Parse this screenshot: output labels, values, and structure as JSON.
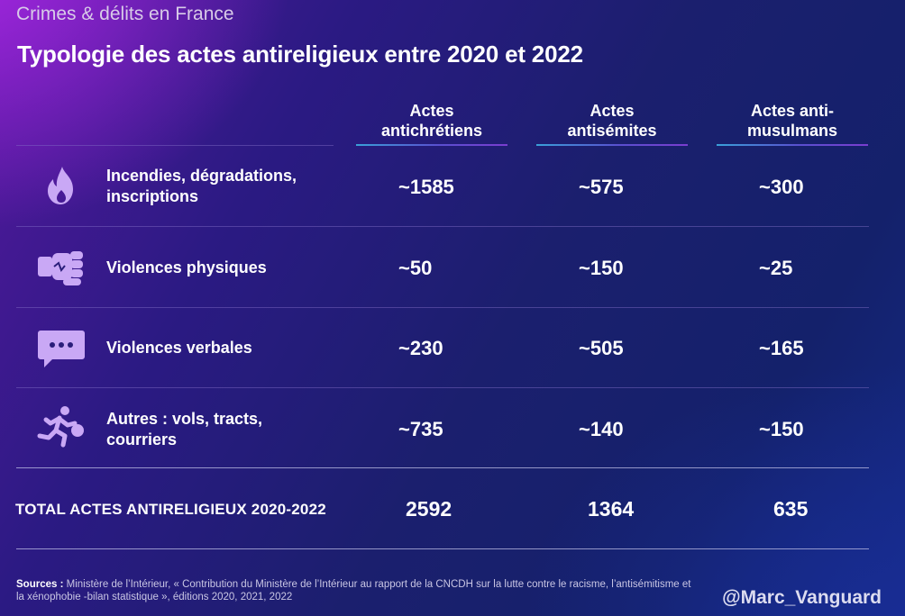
{
  "supertitle": "Crimes & délits en France",
  "chart_data": {
    "type": "table",
    "title": "Typologie des actes antireligieux entre 2020 et 2022",
    "columns": [
      "Actes antichrétiens",
      "Actes antisémites",
      "Actes anti-musulmans"
    ],
    "columns_lines": [
      [
        "Actes",
        "antichrétiens"
      ],
      [
        "Actes",
        "antisémites"
      ],
      [
        "Actes anti-",
        "musulmans"
      ]
    ],
    "rows": [
      {
        "label_lines": [
          "Incendies, dégradations,",
          "inscriptions"
        ],
        "icon": "flame-icon",
        "values": [
          "~1585",
          "~575",
          "~300"
        ]
      },
      {
        "label_lines": [
          "Violences physiques"
        ],
        "icon": "fist-icon",
        "values": [
          "~50",
          "~150",
          "~25"
        ]
      },
      {
        "label_lines": [
          "Violences verbales"
        ],
        "icon": "speech-bubble-icon",
        "values": [
          "~230",
          "~505",
          "~165"
        ]
      },
      {
        "label_lines": [
          "Autres : vols, tracts,",
          "courriers"
        ],
        "icon": "running-thief-icon",
        "values": [
          "~735",
          "~140",
          "~150"
        ]
      }
    ],
    "total": {
      "label": "TOTAL ACTES ANTIRELIGIEUX 2020-2022",
      "values": [
        "2592",
        "1364",
        "635"
      ]
    }
  },
  "sources": {
    "label": "Sources :",
    "text": "Ministère de l’Intérieur, « Contribution du Ministère de l’Intérieur au rapport  de la CNCDH sur la lutte contre le racisme, l’antisémitisme et la xénophobie -bilan statistique », éditions 2020, 2021, 2022"
  },
  "watermark": "@Marc_Vanguard",
  "colors": {
    "icon": "#c9a8f5",
    "accent_line": "#3aa0d8"
  }
}
